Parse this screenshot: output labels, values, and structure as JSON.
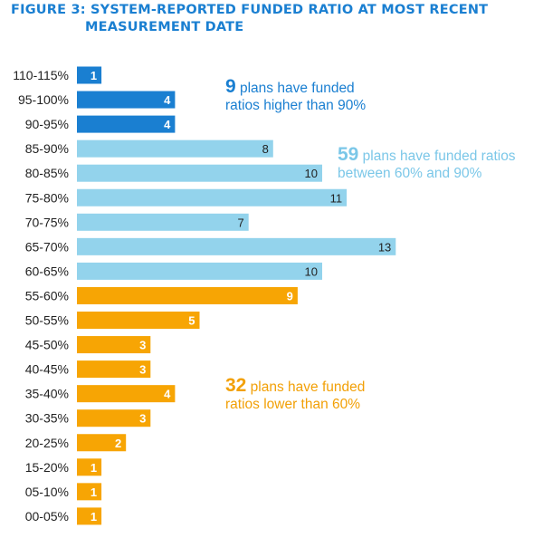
{
  "title_line1": "FIGURE 3: SYSTEM-REPORTED FUNDED RATIO AT MOST RECENT",
  "title_line2": "MEASUREMENT DATE",
  "colors": {
    "high": "#1a7fd1",
    "mid": "#93d3ec",
    "low": "#f7a504",
    "title": "#1a7fd1",
    "label_text": "#222222"
  },
  "annotations": {
    "high": {
      "number": "9",
      "text1": " plans have funded",
      "text2": "ratios higher than 90%"
    },
    "mid": {
      "number": "59",
      "text1": " plans have funded ratios",
      "text2": "between 60% and 90%"
    },
    "low": {
      "number": "32",
      "text1": " plans have funded",
      "text2": "ratios lower than 60%"
    }
  },
  "chart_data": {
    "type": "bar",
    "orientation": "horizontal",
    "title": "FIGURE 3: SYSTEM-REPORTED FUNDED RATIO AT MOST RECENT MEASUREMENT DATE",
    "xlabel": "",
    "ylabel": "",
    "grid": false,
    "categories": [
      "110-115%",
      "95-100%",
      "90-95%",
      "85-90%",
      "80-85%",
      "75-80%",
      "70-75%",
      "65-70%",
      "60-65%",
      "55-60%",
      "50-55%",
      "45-50%",
      "40-45%",
      "35-40%",
      "30-35%",
      "20-25%",
      "15-20%",
      "05-10%",
      "00-05%"
    ],
    "values": [
      1,
      4,
      4,
      8,
      10,
      11,
      7,
      13,
      10,
      9,
      5,
      3,
      3,
      4,
      3,
      2,
      1,
      1,
      1
    ],
    "groups": [
      "high",
      "high",
      "high",
      "mid",
      "mid",
      "mid",
      "mid",
      "mid",
      "mid",
      "low",
      "low",
      "low",
      "low",
      "low",
      "low",
      "low",
      "low",
      "low",
      "low"
    ],
    "data_labels": true
  }
}
